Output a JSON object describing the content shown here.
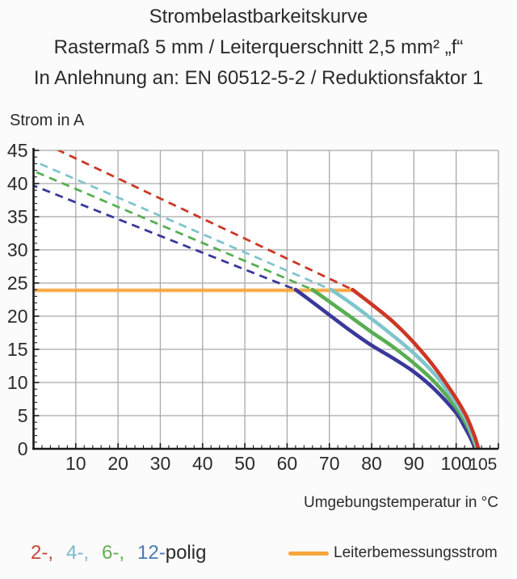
{
  "title": {
    "line1": "Strombelastbarkeitskurve",
    "line2": "Rastermaß 5 mm / Leiterquerschnitt 2,5 mm² „f“",
    "line3": "In Anlehnung an: EN 60512-5-2 / Reduktionsfaktor 1"
  },
  "colors": {
    "background": "#fbfbfb",
    "plot_background": "#ffffff",
    "grid": "#a9a9a9",
    "axis": "#1a1a1a",
    "text": "#2b2b2b",
    "limit_orange": "#f7a63c",
    "series_red": "#cc3726",
    "series_cyan": "#80c5cd",
    "series_green": "#58ae52",
    "series_navy": "#3a389a"
  },
  "legend": {
    "items": [
      {
        "label": "2-,",
        "color": "#c94534",
        "series": "2-polig"
      },
      {
        "label": "4-,",
        "color": "#76b8cc",
        "series": "4-polig"
      },
      {
        "label": "6-,",
        "color": "#66ab58",
        "series": "6-polig"
      },
      {
        "label": "12-",
        "color": "#4a7ab0",
        "series": "12-polig"
      }
    ],
    "suffix": "polig",
    "limit_label": "Leiterbemessungsstrom"
  },
  "chart_data": {
    "type": "line",
    "title": "Strombelastbarkeitskurve",
    "xlabel": "Umgebungstemperatur in °C",
    "ylabel": "Strom in A",
    "xlim": [
      0,
      110
    ],
    "ylim": [
      0,
      45
    ],
    "grid": true,
    "x_axis": {
      "major_tick_step": 10,
      "minor_tick_step": 2,
      "tick_labels": [
        10,
        20,
        30,
        40,
        50,
        60,
        70,
        80,
        90,
        100,
        105
      ]
    },
    "y_axis": {
      "major_tick_step": 5,
      "minor_tick_step": 1,
      "tick_labels": [
        0,
        5,
        10,
        15,
        20,
        25,
        30,
        35,
        40,
        45
      ]
    },
    "limit_line": {
      "name": "Leiterbemessungsstrom",
      "value_A": 24,
      "color": "#f7a63c",
      "points": [
        [
          0,
          23.9
        ],
        [
          75.5,
          23.9
        ]
      ]
    },
    "series": [
      {
        "name": "2-polig",
        "color": "#cc3726",
        "dash_offset": 2,
        "dashed": [
          [
            0,
            46.8
          ],
          [
            75.5,
            24
          ]
        ],
        "solid": [
          [
            75.5,
            24
          ],
          [
            80,
            21.8
          ],
          [
            85,
            19.2
          ],
          [
            90,
            16.0
          ],
          [
            95,
            12.2
          ],
          [
            100,
            7.6
          ],
          [
            102.5,
            4.8
          ],
          [
            104.3,
            2.0
          ],
          [
            105.3,
            0
          ]
        ]
      },
      {
        "name": "4-polig",
        "color": "#80c5cd",
        "dash_offset": 8,
        "dashed": [
          [
            0,
            43.4
          ],
          [
            70.4,
            24
          ]
        ],
        "solid": [
          [
            70.4,
            24
          ],
          [
            75,
            22.0
          ],
          [
            80,
            19.6
          ],
          [
            85,
            17.1
          ],
          [
            90,
            14.4
          ],
          [
            95,
            11.2
          ],
          [
            100,
            6.9
          ],
          [
            102.5,
            4.2
          ],
          [
            104,
            1.8
          ],
          [
            105,
            0
          ]
        ]
      },
      {
        "name": "6-polig",
        "color": "#58ae52",
        "dash_offset": 13,
        "dashed": [
          [
            0,
            41.9
          ],
          [
            66,
            24
          ]
        ],
        "solid": [
          [
            66,
            24
          ],
          [
            70,
            22.2
          ],
          [
            75,
            19.9
          ],
          [
            80,
            17.6
          ],
          [
            85,
            15.4
          ],
          [
            90,
            12.9
          ],
          [
            95,
            10.0
          ],
          [
            100,
            6.2
          ],
          [
            102.5,
            3.6
          ],
          [
            104,
            1.5
          ],
          [
            104.8,
            0
          ]
        ]
      },
      {
        "name": "12-polig",
        "color": "#3a389a",
        "dash_offset": 5,
        "dashed": [
          [
            0,
            39.7
          ],
          [
            62,
            24
          ]
        ],
        "solid": [
          [
            62,
            24
          ],
          [
            65,
            22.6
          ],
          [
            70,
            20.2
          ],
          [
            75,
            17.8
          ],
          [
            80,
            15.6
          ],
          [
            85,
            13.7
          ],
          [
            90,
            11.6
          ],
          [
            95,
            8.9
          ],
          [
            100,
            5.4
          ],
          [
            102,
            3.3
          ],
          [
            103.5,
            1.5
          ],
          [
            104.5,
            0
          ]
        ]
      }
    ]
  }
}
